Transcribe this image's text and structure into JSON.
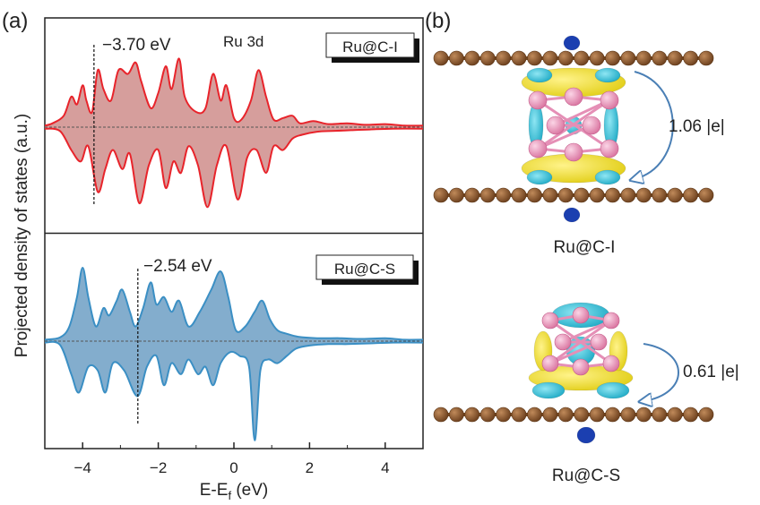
{
  "panel_a": {
    "label": "(a)",
    "title": "Ru 3d",
    "ylabel": "Projected density of states (a.u.)",
    "xlabel_main": "E-E",
    "xlabel_sub": "f",
    "xlabel_unit": " (eV)",
    "top": {
      "legend": "Ru@C-I",
      "dband_center": "−3.70 eV",
      "color": "#e8242b",
      "fill": "#cf8d8b"
    },
    "bottom": {
      "legend": "Ru@C-S",
      "dband_center": "−2.54 eV",
      "color": "#3b8fc4",
      "fill": "#6d9fc4"
    }
  },
  "panel_b": {
    "label": "(b)",
    "top": {
      "name": "Ru@C-I",
      "charge": "1.06 |e|"
    },
    "bottom": {
      "name": "Ru@C-S",
      "charge": "0.61 |e|"
    },
    "colors": {
      "carbon": "#8b5a2b",
      "ruthenium": "#e58fb6",
      "charge_gain": "#f2e32a",
      "charge_loss": "#27b6cf",
      "charge_deep": "#1b3fb0"
    }
  },
  "chart_data": [
    {
      "type": "area",
      "title": "Ru 3d",
      "legend": "Ru@C-I",
      "xlabel": "E-Ef (eV)",
      "ylabel": "Projected density of states (a.u.)",
      "xlim": [
        -5,
        5
      ],
      "xticks": [
        -4,
        -2,
        0,
        2,
        4
      ],
      "dband_center": -3.7,
      "spin_up": [
        [
          -5,
          0.02
        ],
        [
          -4.8,
          0.05
        ],
        [
          -4.5,
          0.15
        ],
        [
          -4.3,
          0.4
        ],
        [
          -4.15,
          0.3
        ],
        [
          -4.0,
          0.55
        ],
        [
          -3.9,
          0.35
        ],
        [
          -3.75,
          0.2
        ],
        [
          -3.6,
          0.75
        ],
        [
          -3.45,
          0.5
        ],
        [
          -3.25,
          0.35
        ],
        [
          -3.05,
          0.75
        ],
        [
          -2.8,
          0.7
        ],
        [
          -2.6,
          0.85
        ],
        [
          -2.45,
          0.6
        ],
        [
          -2.2,
          0.25
        ],
        [
          -2.0,
          0.45
        ],
        [
          -1.8,
          0.8
        ],
        [
          -1.65,
          0.5
        ],
        [
          -1.45,
          0.9
        ],
        [
          -1.3,
          0.4
        ],
        [
          -1.0,
          0.2
        ],
        [
          -0.75,
          0.25
        ],
        [
          -0.55,
          0.7
        ],
        [
          -0.35,
          0.35
        ],
        [
          -0.2,
          0.55
        ],
        [
          0.0,
          0.12
        ],
        [
          0.2,
          0.1
        ],
        [
          0.45,
          0.35
        ],
        [
          0.65,
          0.75
        ],
        [
          0.85,
          0.4
        ],
        [
          1.05,
          0.1
        ],
        [
          1.3,
          0.12
        ],
        [
          1.55,
          0.15
        ],
        [
          1.75,
          0.05
        ],
        [
          2.1,
          0.08
        ],
        [
          2.5,
          0.04
        ],
        [
          3.0,
          0.05
        ],
        [
          3.5,
          0.03
        ],
        [
          4.0,
          0.04
        ],
        [
          4.5,
          0.02
        ],
        [
          5,
          0.02
        ]
      ],
      "spin_down": [
        [
          -5,
          -0.02
        ],
        [
          -4.6,
          -0.05
        ],
        [
          -4.3,
          -0.3
        ],
        [
          -4.05,
          -0.45
        ],
        [
          -3.85,
          -0.25
        ],
        [
          -3.6,
          -0.85
        ],
        [
          -3.4,
          -0.55
        ],
        [
          -3.2,
          -0.3
        ],
        [
          -2.95,
          -0.55
        ],
        [
          -2.75,
          -0.35
        ],
        [
          -2.5,
          -1.0
        ],
        [
          -2.25,
          -0.5
        ],
        [
          -2.0,
          -0.3
        ],
        [
          -1.8,
          -0.8
        ],
        [
          -1.6,
          -0.45
        ],
        [
          -1.4,
          -0.6
        ],
        [
          -1.2,
          -0.25
        ],
        [
          -0.95,
          -0.5
        ],
        [
          -0.7,
          -1.05
        ],
        [
          -0.45,
          -0.5
        ],
        [
          -0.2,
          -0.25
        ],
        [
          0.1,
          -0.95
        ],
        [
          0.35,
          -0.4
        ],
        [
          0.6,
          -0.3
        ],
        [
          0.85,
          -0.6
        ],
        [
          1.05,
          -0.25
        ],
        [
          1.3,
          -0.3
        ],
        [
          1.55,
          -0.15
        ],
        [
          1.8,
          -0.1
        ],
        [
          2.2,
          -0.06
        ],
        [
          2.6,
          -0.05
        ],
        [
          3.1,
          -0.04
        ],
        [
          3.6,
          -0.03
        ],
        [
          4.2,
          -0.02
        ],
        [
          5,
          -0.02
        ]
      ]
    },
    {
      "type": "area",
      "legend": "Ru@C-S",
      "xlabel": "E-Ef (eV)",
      "ylabel": "Projected density of states (a.u.)",
      "xlim": [
        -5,
        5
      ],
      "xticks": [
        -4,
        -2,
        0,
        2,
        4
      ],
      "dband_center": -2.54,
      "spin_up": [
        [
          -5,
          0.02
        ],
        [
          -4.6,
          0.05
        ],
        [
          -4.35,
          0.2
        ],
        [
          -4.15,
          0.6
        ],
        [
          -4.0,
          1.0
        ],
        [
          -3.85,
          0.6
        ],
        [
          -3.65,
          0.2
        ],
        [
          -3.45,
          0.45
        ],
        [
          -3.3,
          0.35
        ],
        [
          -3.1,
          0.55
        ],
        [
          -2.95,
          0.7
        ],
        [
          -2.75,
          0.4
        ],
        [
          -2.6,
          0.2
        ],
        [
          -2.4,
          0.45
        ],
        [
          -2.2,
          0.8
        ],
        [
          -2.05,
          0.5
        ],
        [
          -1.85,
          0.6
        ],
        [
          -1.65,
          0.4
        ],
        [
          -1.45,
          0.55
        ],
        [
          -1.2,
          0.2
        ],
        [
          -0.9,
          0.4
        ],
        [
          -0.6,
          0.7
        ],
        [
          -0.35,
          0.95
        ],
        [
          -0.15,
          0.6
        ],
        [
          0.05,
          0.15
        ],
        [
          0.3,
          0.2
        ],
        [
          0.55,
          0.4
        ],
        [
          0.75,
          0.55
        ],
        [
          0.95,
          0.3
        ],
        [
          1.15,
          0.15
        ],
        [
          1.4,
          0.1
        ],
        [
          1.7,
          0.06
        ],
        [
          2.2,
          0.04
        ],
        [
          2.8,
          0.04
        ],
        [
          3.4,
          0.03
        ],
        [
          4.0,
          0.04
        ],
        [
          4.5,
          0.02
        ],
        [
          5,
          0.02
        ]
      ],
      "spin_down": [
        [
          -5,
          -0.02
        ],
        [
          -4.6,
          -0.05
        ],
        [
          -4.3,
          -0.45
        ],
        [
          -4.1,
          -0.7
        ],
        [
          -3.85,
          -0.35
        ],
        [
          -3.6,
          -0.4
        ],
        [
          -3.4,
          -0.7
        ],
        [
          -3.2,
          -0.3
        ],
        [
          -2.9,
          -0.4
        ],
        [
          -2.55,
          -0.75
        ],
        [
          -2.3,
          -0.35
        ],
        [
          -2.05,
          -0.2
        ],
        [
          -1.85,
          -0.6
        ],
        [
          -1.65,
          -0.3
        ],
        [
          -1.4,
          -0.45
        ],
        [
          -1.2,
          -0.25
        ],
        [
          -0.95,
          -0.45
        ],
        [
          -0.75,
          -0.35
        ],
        [
          -0.55,
          -0.6
        ],
        [
          -0.35,
          -0.3
        ],
        [
          -0.1,
          -0.15
        ],
        [
          0.15,
          -0.2
        ],
        [
          0.4,
          -0.35
        ],
        [
          0.55,
          -1.35
        ],
        [
          0.7,
          -0.4
        ],
        [
          0.9,
          -0.25
        ],
        [
          1.15,
          -0.3
        ],
        [
          1.4,
          -0.2
        ],
        [
          1.65,
          -0.1
        ],
        [
          2.0,
          -0.06
        ],
        [
          2.5,
          -0.04
        ],
        [
          3.0,
          -0.04
        ],
        [
          3.6,
          -0.03
        ],
        [
          4.2,
          -0.02
        ],
        [
          5,
          -0.02
        ]
      ]
    }
  ]
}
